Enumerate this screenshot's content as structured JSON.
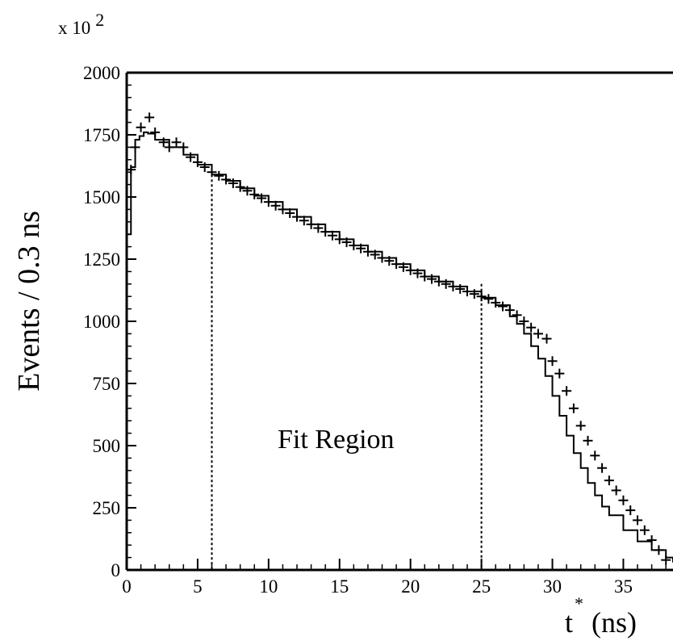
{
  "chart_data": {
    "type": "line",
    "title": "",
    "ylabel": "Events / 0.3 ns",
    "xlabel": {
      "base": "t",
      "superscript": "*",
      "unit": "(ns)"
    },
    "y_multiplier": {
      "base": "x 10",
      "exponent": "2"
    },
    "xlim": [
      0,
      38.5
    ],
    "ylim": [
      0,
      2000
    ],
    "x_ticks": [
      "0",
      "5",
      "10",
      "15",
      "20",
      "25",
      "30",
      "35"
    ],
    "y_ticks": [
      "0",
      "250",
      "500",
      "750",
      "1000",
      "1250",
      "1500",
      "1750",
      "2000"
    ],
    "annotations": {
      "fit_region_label": "Fit Region",
      "fit_region_x": [
        6,
        25
      ]
    },
    "series": [
      {
        "style": "histogram-line",
        "x": [
          0,
          0.3,
          0.6,
          0.9,
          1.2,
          1.5,
          2,
          3,
          4,
          5,
          6,
          7,
          8,
          9,
          10,
          11,
          12,
          13,
          14,
          15,
          16,
          17,
          18,
          19,
          20,
          21,
          22,
          23,
          24,
          25,
          26,
          27,
          27.5,
          28,
          28.5,
          29,
          29.5,
          30,
          30.5,
          31,
          31.5,
          32,
          32.5,
          33,
          33.5,
          34,
          35,
          36,
          37,
          38,
          38.5
        ],
        "y": [
          1350,
          1620,
          1730,
          1745,
          1760,
          1755,
          1730,
          1700,
          1670,
          1630,
          1590,
          1565,
          1535,
          1505,
          1480,
          1450,
          1420,
          1390,
          1360,
          1330,
          1305,
          1280,
          1255,
          1230,
          1205,
          1180,
          1160,
          1140,
          1120,
          1095,
          1065,
          1020,
          990,
          950,
          900,
          850,
          780,
          700,
          620,
          540,
          470,
          410,
          350,
          300,
          255,
          220,
          160,
          115,
          80,
          50,
          30
        ]
      },
      {
        "style": "data-points",
        "x": [
          0.3,
          0.6,
          1,
          1.6,
          2,
          2.6,
          3,
          3.5,
          4,
          4.5,
          5,
          5.5,
          6,
          6.5,
          7,
          7.5,
          8,
          8.5,
          9,
          9.5,
          10,
          10.5,
          11,
          11.5,
          12,
          12.5,
          13,
          13.5,
          14,
          14.5,
          15,
          15.5,
          16,
          16.5,
          17,
          17.5,
          18,
          18.5,
          19,
          19.5,
          20,
          20.5,
          21,
          21.5,
          22,
          22.5,
          23,
          23.5,
          24,
          24.5,
          25,
          25.5,
          26,
          26.5,
          27,
          27.5,
          28,
          28.5,
          29,
          29.6,
          30,
          30.5,
          31,
          31.5,
          32,
          32.5,
          33,
          33.5,
          34,
          34.5,
          35,
          35.5,
          36,
          36.5,
          37,
          37.5,
          38
        ],
        "y": [
          1610,
          1700,
          1780,
          1820,
          1760,
          1720,
          1700,
          1720,
          1700,
          1660,
          1640,
          1620,
          1600,
          1585,
          1570,
          1555,
          1540,
          1525,
          1510,
          1495,
          1480,
          1465,
          1450,
          1435,
          1420,
          1405,
          1390,
          1375,
          1360,
          1345,
          1330,
          1318,
          1305,
          1293,
          1280,
          1268,
          1255,
          1243,
          1230,
          1218,
          1205,
          1193,
          1180,
          1170,
          1160,
          1150,
          1140,
          1130,
          1120,
          1110,
          1100,
          1090,
          1075,
          1060,
          1045,
          1025,
          1000,
          975,
          950,
          930,
          840,
          790,
          720,
          650,
          580,
          520,
          460,
          410,
          360,
          320,
          280,
          240,
          200,
          160,
          120,
          80,
          40
        ]
      }
    ],
    "grid": false,
    "colors": {
      "axis": "#000000",
      "series": "#000000"
    }
  }
}
